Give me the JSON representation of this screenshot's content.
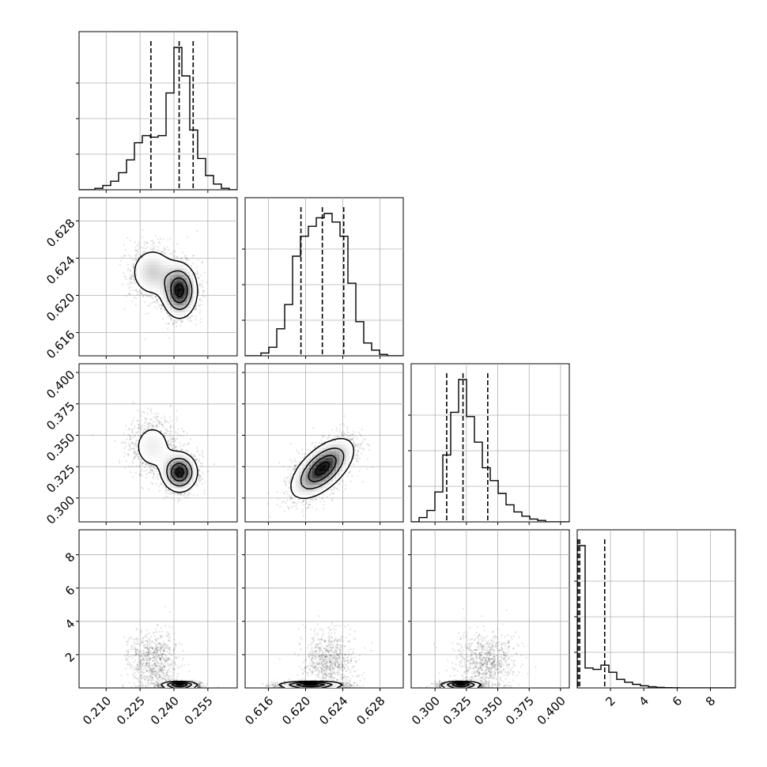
{
  "chart_data": {
    "type": "corner",
    "grid": true,
    "parameters": [
      {
        "range": [
          0.198,
          0.268
        ],
        "ticks": [
          "0.210",
          "0.225",
          "0.240",
          "0.255"
        ],
        "tick_values": [
          0.21,
          0.225,
          0.24,
          0.255
        ],
        "quantiles": [
          0.2298,
          0.2423,
          0.2485
        ],
        "histogram": {
          "edges": [
            0.198,
            0.2015,
            0.205,
            0.2085,
            0.212,
            0.2155,
            0.219,
            0.2225,
            0.226,
            0.2295,
            0.233,
            0.2365,
            0.24,
            0.2435,
            0.247,
            0.2505,
            0.254,
            0.2575,
            0.261,
            0.2645,
            0.268
          ],
          "counts": [
            0,
            0,
            0.01,
            0.03,
            0.06,
            0.12,
            0.21,
            0.33,
            0.38,
            0.37,
            0.38,
            0.68,
            1.0,
            0.8,
            0.42,
            0.22,
            0.1,
            0.04,
            0.01,
            0
          ]
        }
      },
      {
        "range": [
          0.6135,
          0.6305
        ],
        "ticks": [
          "0.616",
          "0.620",
          "0.624",
          "0.628"
        ],
        "tick_values": [
          0.616,
          0.62,
          0.624,
          0.628
        ],
        "quantiles": [
          0.6195,
          0.6218,
          0.6241
        ],
        "histogram": {
          "edges": [
            0.6135,
            0.61435,
            0.6152,
            0.61605,
            0.6169,
            0.61775,
            0.6186,
            0.61945,
            0.6203,
            0.62115,
            0.622,
            0.62285,
            0.6237,
            0.62455,
            0.6254,
            0.62625,
            0.6271,
            0.62795,
            0.6288,
            0.62965,
            0.6305
          ],
          "counts": [
            0,
            0,
            0.02,
            0.06,
            0.19,
            0.36,
            0.7,
            0.84,
            0.91,
            0.97,
            1.0,
            0.94,
            0.84,
            0.51,
            0.24,
            0.09,
            0.04,
            0.01,
            0,
            0
          ]
        }
      },
      {
        "range": [
          0.281,
          0.407
        ],
        "ticks": [
          "0.300",
          "0.325",
          "0.350",
          "0.375",
          "0.400"
        ],
        "tick_values": [
          0.3,
          0.325,
          0.35,
          0.375,
          0.4
        ],
        "quantiles": [
          0.3093,
          0.3223,
          0.342
        ],
        "histogram": {
          "edges": [
            0.281,
            0.2873,
            0.2936,
            0.2999,
            0.3062,
            0.3125,
            0.3188,
            0.3251,
            0.3314,
            0.3377,
            0.344,
            0.3503,
            0.3566,
            0.3629,
            0.3692,
            0.3755,
            0.3818,
            0.3881,
            0.3944,
            0.4007,
            0.407
          ],
          "counts": [
            0,
            0.03,
            0.08,
            0.21,
            0.47,
            0.77,
            1.0,
            0.74,
            0.56,
            0.38,
            0.29,
            0.2,
            0.12,
            0.07,
            0.04,
            0.02,
            0.01,
            0,
            0,
            0
          ]
        }
      },
      {
        "range": [
          0,
          9.5
        ],
        "ticks": [
          "2",
          "4",
          "6",
          "8"
        ],
        "tick_values": [
          2,
          4,
          6,
          8
        ],
        "quantiles": [
          0.05,
          0.15,
          1.65
        ],
        "histogram": {
          "edges": [
            0,
            0.475,
            0.95,
            1.425,
            1.9,
            2.375,
            2.85,
            3.325,
            3.8,
            4.275,
            4.75,
            5.225,
            5.7,
            6.175,
            6.65,
            7.125,
            7.6,
            8.075,
            8.55,
            9.025,
            9.5
          ],
          "counts": [
            1.0,
            0.14,
            0.13,
            0.16,
            0.11,
            0.06,
            0.04,
            0.025,
            0.015,
            0.008,
            0.004,
            0.002,
            0.001,
            0,
            0,
            0,
            0,
            0,
            0,
            0
          ]
        }
      }
    ],
    "pairs": [
      {
        "x": 0,
        "y": 1,
        "modes": [
          {
            "mx": 0.2305,
            "my": 0.6225,
            "sx": 0.0055,
            "sy": 0.0015,
            "w": 0.35,
            "r": 0
          },
          {
            "mx": 0.2425,
            "my": 0.6205,
            "sx": 0.004,
            "sy": 0.0015,
            "w": 0.65,
            "r": 0
          }
        ]
      },
      {
        "x": 0,
        "y": 2,
        "modes": [
          {
            "mx": 0.2305,
            "my": 0.341,
            "sx": 0.0055,
            "sy": 0.012,
            "w": 0.35,
            "r": 0
          },
          {
            "mx": 0.2425,
            "my": 0.3205,
            "sx": 0.004,
            "sy": 0.008,
            "w": 0.65,
            "r": 0
          }
        ]
      },
      {
        "x": 0,
        "y": 3,
        "modes": [
          {
            "mx": 0.2305,
            "my": 1.6,
            "sx": 0.0055,
            "sy": 0.9,
            "w": 0.35,
            "r": 0
          },
          {
            "mx": 0.2425,
            "my": 0.15,
            "sx": 0.004,
            "sy": 0.12,
            "w": 0.65,
            "r": 0
          }
        ]
      },
      {
        "x": 1,
        "y": 2,
        "modes": [
          {
            "mx": 0.6218,
            "my": 0.3235,
            "sx": 0.0017,
            "sy": 0.012,
            "w": 1.0,
            "r": 0.6
          }
        ]
      },
      {
        "x": 1,
        "y": 3,
        "modes": [
          {
            "mx": 0.6225,
            "my": 1.6,
            "sx": 0.0014,
            "sy": 0.9,
            "w": 0.35,
            "r": 0
          },
          {
            "mx": 0.6205,
            "my": 0.15,
            "sx": 0.0017,
            "sy": 0.12,
            "w": 0.65,
            "r": 0
          }
        ]
      },
      {
        "x": 2,
        "y": 3,
        "modes": [
          {
            "mx": 0.341,
            "my": 1.6,
            "sx": 0.012,
            "sy": 0.9,
            "w": 0.35,
            "r": 0
          },
          {
            "mx": 0.3205,
            "my": 0.15,
            "sx": 0.008,
            "sy": 0.12,
            "w": 0.65,
            "r": 0
          }
        ]
      }
    ]
  }
}
